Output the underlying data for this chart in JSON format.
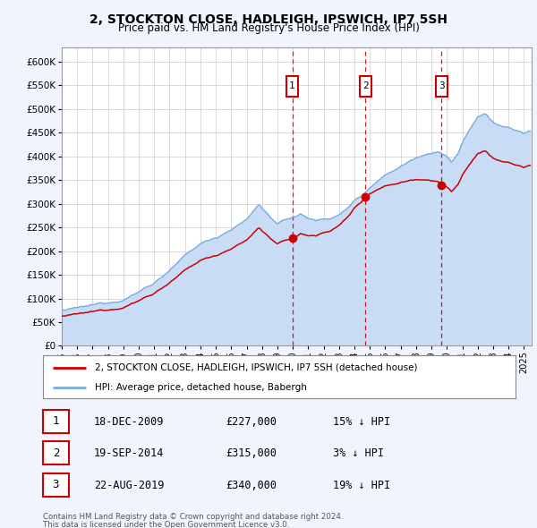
{
  "title": "2, STOCKTON CLOSE, HADLEIGH, IPSWICH, IP7 5SH",
  "subtitle": "Price paid vs. HM Land Registry's House Price Index (HPI)",
  "yticks": [
    0,
    50000,
    100000,
    150000,
    200000,
    250000,
    300000,
    350000,
    400000,
    450000,
    500000,
    550000,
    600000
  ],
  "ylim": [
    0,
    630000
  ],
  "xlim_start": 1995.0,
  "xlim_end": 2025.5,
  "xticks": [
    1995,
    1996,
    1997,
    1998,
    1999,
    2000,
    2001,
    2002,
    2003,
    2004,
    2005,
    2006,
    2007,
    2008,
    2009,
    2010,
    2011,
    2012,
    2013,
    2014,
    2015,
    2016,
    2017,
    2018,
    2019,
    2020,
    2021,
    2022,
    2023,
    2024,
    2025
  ],
  "background_color": "#f0f4ff",
  "plot_bg_color": "#ffffff",
  "grid_color": "#cccccc",
  "hpi_color": "#7aaadd",
  "hpi_fill_color": "#c8ddf5",
  "price_color": "#cc0000",
  "vline_color": "#cc0000",
  "marker_box_color": "#cc0000",
  "sale1_x": 2009.96,
  "sale1_y": 227000,
  "sale1_label": "1",
  "sale1_date": "18-DEC-2009",
  "sale1_price": "£227,000",
  "sale1_hpi": "15% ↓ HPI",
  "sale2_x": 2014.72,
  "sale2_y": 315000,
  "sale2_label": "2",
  "sale2_date": "19-SEP-2014",
  "sale2_price": "£315,000",
  "sale2_hpi": "3% ↓ HPI",
  "sale3_x": 2019.64,
  "sale3_y": 340000,
  "sale3_label": "3",
  "sale3_date": "22-AUG-2019",
  "sale3_price": "£340,000",
  "sale3_hpi": "19% ↓ HPI",
  "legend_line1": "2, STOCKTON CLOSE, HADLEIGH, IPSWICH, IP7 5SH (detached house)",
  "legend_line2": "HPI: Average price, detached house, Babergh",
  "footer1": "Contains HM Land Registry data © Crown copyright and database right 2024.",
  "footer2": "This data is licensed under the Open Government Licence v3.0."
}
